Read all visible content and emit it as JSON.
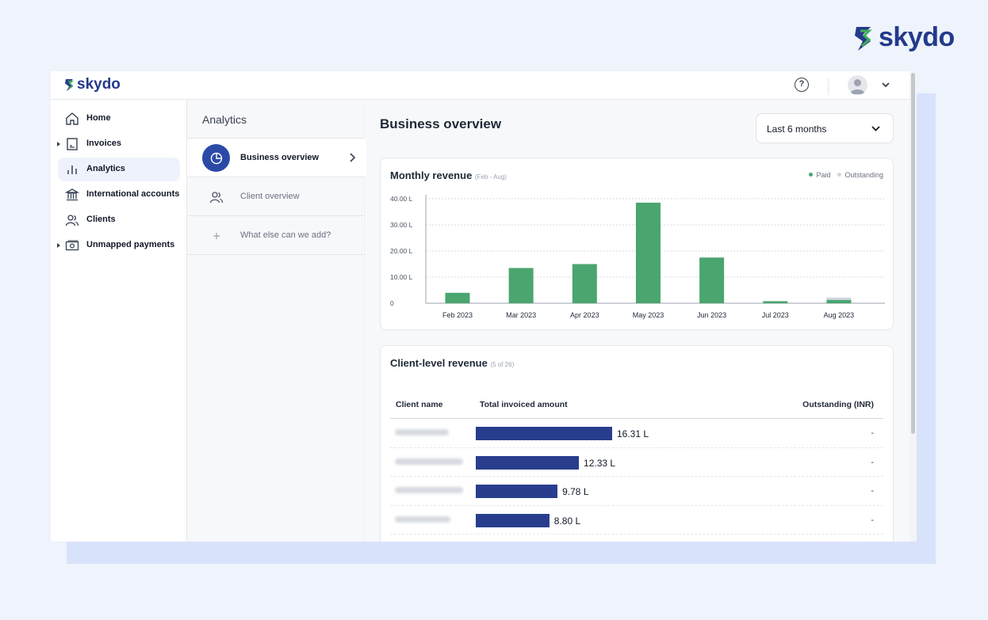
{
  "brand": {
    "name": "skydo"
  },
  "app": {
    "logo": "skydo",
    "topbar": {
      "help_icon": "question-circle-icon",
      "avatar_icon": "user-avatar-icon"
    },
    "sidebar": {
      "items": [
        {
          "label": "Home",
          "icon": "home-icon",
          "expandable": false,
          "active": false
        },
        {
          "label": "Invoices",
          "icon": "invoice-icon",
          "expandable": true,
          "active": false
        },
        {
          "label": "Analytics",
          "icon": "analytics-icon",
          "expandable": false,
          "active": true
        },
        {
          "label": "International accounts",
          "icon": "bank-icon",
          "expandable": false,
          "active": false
        },
        {
          "label": "Clients",
          "icon": "clients-icon",
          "expandable": false,
          "active": false
        },
        {
          "label": "Unmapped payments",
          "icon": "cash-icon",
          "expandable": true,
          "active": false
        }
      ]
    },
    "subnav": {
      "title": "Analytics",
      "items": [
        {
          "label": "Business overview",
          "icon": "pie-chart-icon",
          "active": true
        },
        {
          "label": "Client overview",
          "icon": "users-icon",
          "active": false
        },
        {
          "label": "What else can we add?",
          "icon": "plus-icon",
          "active": false
        }
      ]
    },
    "main": {
      "title": "Business overview",
      "range_select": {
        "value": "Last 6 months"
      },
      "monthly_revenue": {
        "title": "Monthly revenue",
        "subtitle": "(Feb - Aug)",
        "legend": [
          {
            "label": "Paid",
            "color": "#4aa56f"
          },
          {
            "label": "Outstanding",
            "color": "#d1d5db"
          }
        ]
      },
      "client_revenue": {
        "title": "Client-level revenue",
        "subtitle": "(5 of 26)",
        "columns": [
          "Client name",
          "Total invoiced amount",
          "Outstanding (INR)"
        ],
        "rows": [
          {
            "amount_label": "16.31 L",
            "value": 16.31,
            "outstanding": "-"
          },
          {
            "amount_label": "12.33 L",
            "value": 12.33,
            "outstanding": "-"
          },
          {
            "amount_label": "9.78 L",
            "value": 9.78,
            "outstanding": "-"
          },
          {
            "amount_label": "8.80 L",
            "value": 8.8,
            "outstanding": "-"
          }
        ],
        "bar_max": 16.31,
        "bar_color": "#283e8d"
      }
    }
  },
  "chart_data": {
    "type": "bar",
    "title": "Monthly revenue",
    "subtitle": "(Feb - Aug)",
    "categories": [
      "Feb 2023",
      "Mar 2023",
      "Apr 2023",
      "May 2023",
      "Jun 2023",
      "Jul 2023",
      "Aug 2023"
    ],
    "series": [
      {
        "name": "Paid",
        "color": "#4aa56f",
        "values": [
          4.0,
          13.5,
          15.0,
          38.5,
          17.5,
          0.8,
          1.3
        ]
      },
      {
        "name": "Outstanding",
        "color": "#d1d5db",
        "values": [
          0,
          0,
          0,
          0,
          0,
          0,
          0.9
        ]
      }
    ],
    "stacked": true,
    "y_ticks": [
      {
        "value": 0,
        "label": "0"
      },
      {
        "value": 10,
        "label": "10.00 L"
      },
      {
        "value": 20,
        "label": "20.00 L"
      },
      {
        "value": 30,
        "label": "30.00 L"
      },
      {
        "value": 40,
        "label": "40.00 L"
      }
    ],
    "ylim": [
      0,
      40
    ],
    "grid": true,
    "legend_position": "top-right"
  }
}
